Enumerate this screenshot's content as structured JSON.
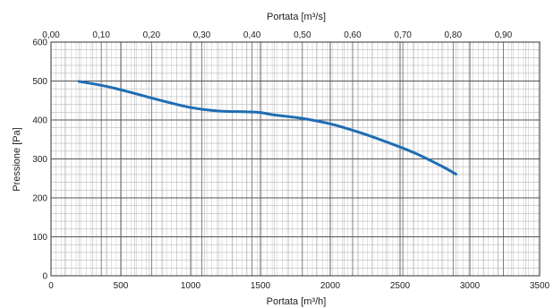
{
  "chart_data": {
    "type": "line",
    "title": "",
    "xlabel": "Portata [m³/h]",
    "x2label": "Portata [m³/s]",
    "ylabel": "Pressione [Pa]",
    "xlim": [
      0,
      3500
    ],
    "x2lim": [
      0,
      0.9722
    ],
    "ylim": [
      0,
      600
    ],
    "grid": true,
    "x_ticks": [
      "0",
      "500",
      "1000",
      "1500",
      "2000",
      "2500",
      "3000",
      "3500"
    ],
    "x2_ticks": [
      "0,00",
      "0,10",
      "0,20",
      "0,30",
      "0,40",
      "0,50",
      "0,60",
      "0,70",
      "0,80",
      "0,90"
    ],
    "y_ticks": [
      "0",
      "100",
      "200",
      "300",
      "400",
      "500",
      "600"
    ],
    "line_color": "#1f6db3",
    "series": [
      {
        "x": [
          200,
          400,
          600,
          800,
          1000,
          1200,
          1400,
          1500,
          1600,
          1800,
          2000,
          2200,
          2400,
          2600,
          2800,
          2900
        ],
        "y": [
          499,
          486,
          468,
          449,
          432,
          423,
          421,
          419,
          413,
          404,
          390,
          369,
          344,
          316,
          281,
          261
        ]
      }
    ]
  }
}
